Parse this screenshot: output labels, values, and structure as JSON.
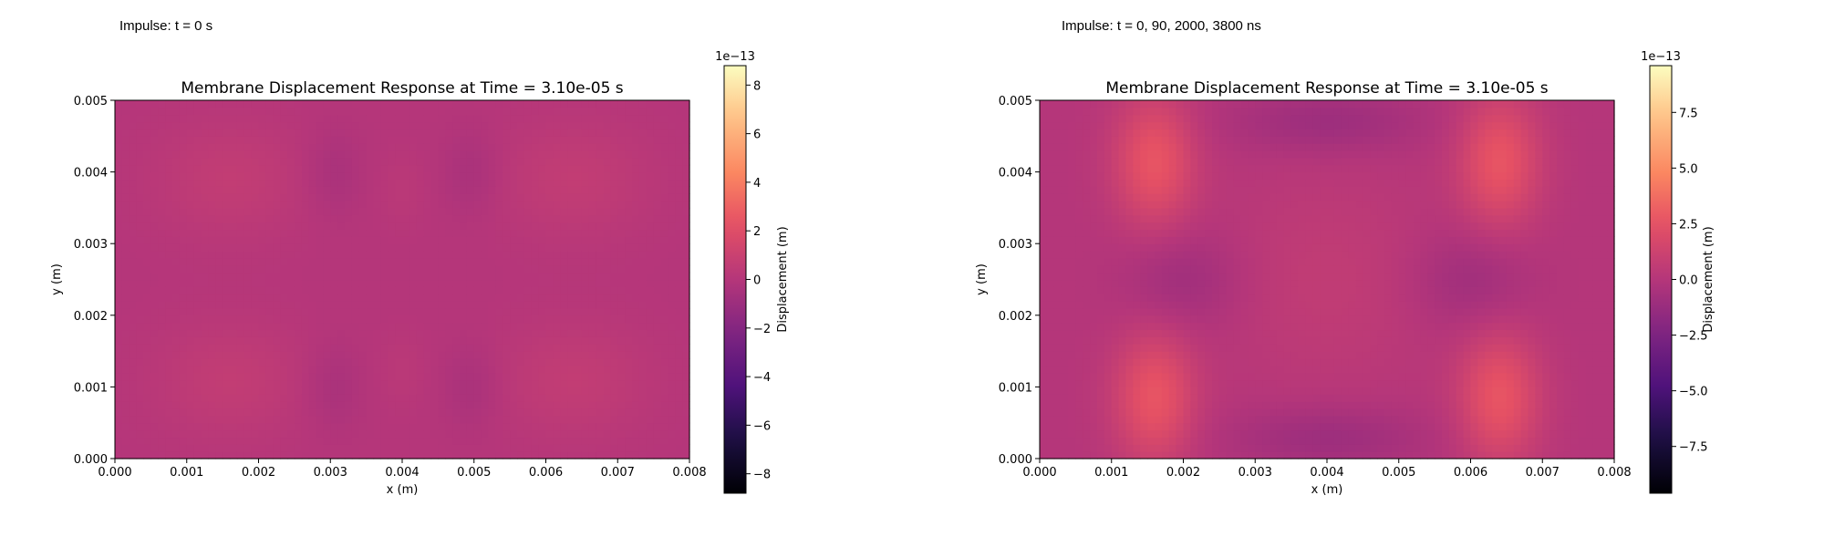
{
  "captions": [
    {
      "text": "Impulse: t = 0 s"
    },
    {
      "text": "Impulse: t = 0, 90, 2000, 3800 ns"
    }
  ],
  "chart_data": [
    {
      "type": "heatmap",
      "colormap": "magma",
      "title": "Membrane Displacement Response at Time = 3.10e-05 s",
      "xlabel": "x (m)",
      "ylabel": "y (m)",
      "xlim": [
        0,
        0.008
      ],
      "ylim": [
        0,
        0.005
      ],
      "x_ticks": [
        "0.000",
        "0.001",
        "0.002",
        "0.003",
        "0.004",
        "0.005",
        "0.006",
        "0.007",
        "0.008"
      ],
      "y_ticks": [
        "0.000",
        "0.001",
        "0.002",
        "0.003",
        "0.004",
        "0.005"
      ],
      "colorbar": {
        "label": "Displacement (m)",
        "offset_text": "1e−13",
        "range": [
          -8.8,
          8.8
        ],
        "ticks": [
          -8,
          -6,
          -4,
          -2,
          0,
          2,
          4,
          6,
          8
        ],
        "tick_labels": [
          "−8",
          "−6",
          "−4",
          "−2",
          "0",
          "2",
          "4",
          "6",
          "8"
        ]
      },
      "value_range_estimate": [
        -0.6,
        1.0
      ]
    },
    {
      "type": "heatmap",
      "colormap": "magma",
      "title": "Membrane Displacement Response at Time = 3.10e-05 s",
      "xlabel": "x (m)",
      "ylabel": "y (m)",
      "xlim": [
        0,
        0.008
      ],
      "ylim": [
        0,
        0.005
      ],
      "x_ticks": [
        "0.000",
        "0.001",
        "0.002",
        "0.003",
        "0.004",
        "0.005",
        "0.006",
        "0.007",
        "0.008"
      ],
      "y_ticks": [
        "0.000",
        "0.001",
        "0.002",
        "0.003",
        "0.004",
        "0.005"
      ],
      "colorbar": {
        "label": "Displacement (m)",
        "offset_text": "1e−13",
        "range": [
          -9.6,
          9.6
        ],
        "ticks": [
          -7.5,
          -5.0,
          -2.5,
          0.0,
          2.5,
          5.0,
          7.5
        ],
        "tick_labels": [
          "−7.5",
          "−5.0",
          "−2.5",
          "0.0",
          "2.5",
          "5.0",
          "7.5"
        ]
      },
      "value_range_estimate": [
        -1.5,
        3.0
      ]
    }
  ]
}
